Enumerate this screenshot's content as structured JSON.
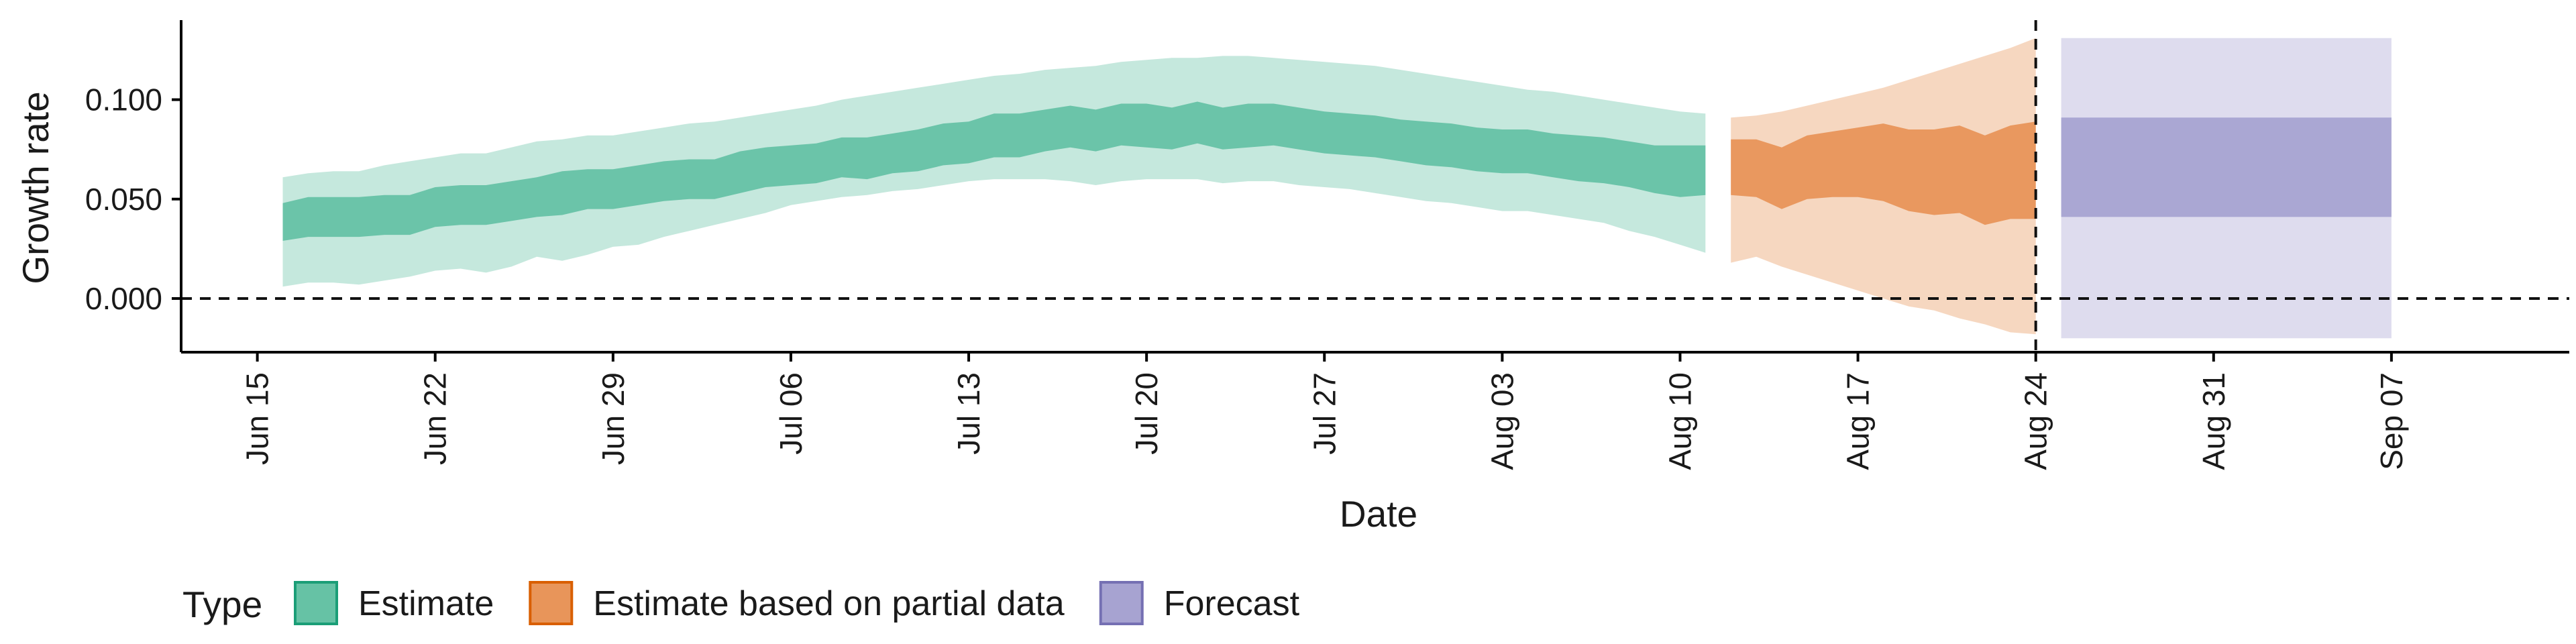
{
  "chart_data": {
    "type": "area",
    "xlabel": "Date",
    "ylabel": "Growth rate",
    "x_ticks": [
      "Jun 15",
      "Jun 22",
      "Jun 29",
      "Jul 06",
      "Jul 13",
      "Jul 20",
      "Jul 27",
      "Aug 03",
      "Aug 10",
      "Aug 17",
      "Aug 24",
      "Aug 31",
      "Sep 07"
    ],
    "y_ticks": [
      "0.000",
      "0.050",
      "0.100"
    ],
    "xlim": [
      "2020-06-12",
      "2020-09-14"
    ],
    "ylim": [
      -0.027,
      0.14
    ],
    "grid": false,
    "reference_lines": [
      {
        "orientation": "horizontal",
        "value": 0.0,
        "style": "dashed"
      },
      {
        "orientation": "vertical",
        "value": "2020-08-24",
        "style": "dashed"
      }
    ],
    "legend": {
      "title": "Type",
      "position": "bottom",
      "entries": [
        {
          "label": "Estimate",
          "color": "#66c2a5",
          "border": "#1b9e77"
        },
        {
          "label": "Estimate based on partial data",
          "color": "#e8955a",
          "border": "#d95f02"
        },
        {
          "label": "Forecast",
          "color": "#a7a3d1",
          "border": "#7570b3"
        }
      ]
    },
    "series": [
      {
        "name": "Estimate",
        "color": "#66c2a5",
        "start_date": "2020-06-16",
        "end_date": "2020-08-11",
        "inner_lower": [
          0.029,
          0.031,
          0.031,
          0.031,
          0.032,
          0.032,
          0.036,
          0.037,
          0.037,
          0.039,
          0.041,
          0.042,
          0.045,
          0.045,
          0.047,
          0.049,
          0.05,
          0.05,
          0.053,
          0.056,
          0.057,
          0.058,
          0.061,
          0.06,
          0.063,
          0.064,
          0.067,
          0.068,
          0.071,
          0.071,
          0.074,
          0.076,
          0.074,
          0.077,
          0.076,
          0.075,
          0.078,
          0.075,
          0.076,
          0.077,
          0.075,
          0.073,
          0.072,
          0.071,
          0.069,
          0.067,
          0.066,
          0.064,
          0.063,
          0.063,
          0.061,
          0.059,
          0.058,
          0.056,
          0.053,
          0.051,
          0.052
        ],
        "inner_upper": [
          0.048,
          0.051,
          0.051,
          0.051,
          0.052,
          0.052,
          0.056,
          0.057,
          0.057,
          0.059,
          0.061,
          0.064,
          0.065,
          0.065,
          0.067,
          0.069,
          0.07,
          0.07,
          0.074,
          0.076,
          0.077,
          0.078,
          0.081,
          0.081,
          0.083,
          0.085,
          0.088,
          0.089,
          0.093,
          0.093,
          0.095,
          0.097,
          0.095,
          0.098,
          0.098,
          0.096,
          0.099,
          0.096,
          0.098,
          0.098,
          0.096,
          0.094,
          0.093,
          0.092,
          0.09,
          0.089,
          0.088,
          0.086,
          0.085,
          0.085,
          0.083,
          0.082,
          0.081,
          0.079,
          0.077,
          0.077,
          0.077
        ],
        "outer_lower": [
          0.006,
          0.008,
          0.008,
          0.007,
          0.009,
          0.011,
          0.014,
          0.015,
          0.013,
          0.016,
          0.021,
          0.019,
          0.022,
          0.026,
          0.027,
          0.031,
          0.034,
          0.037,
          0.04,
          0.043,
          0.047,
          0.049,
          0.051,
          0.052,
          0.054,
          0.055,
          0.057,
          0.059,
          0.06,
          0.06,
          0.06,
          0.059,
          0.057,
          0.059,
          0.06,
          0.06,
          0.06,
          0.058,
          0.059,
          0.059,
          0.057,
          0.056,
          0.055,
          0.053,
          0.051,
          0.049,
          0.048,
          0.046,
          0.044,
          0.044,
          0.042,
          0.04,
          0.038,
          0.034,
          0.031,
          0.027,
          0.023
        ],
        "outer_upper": [
          0.061,
          0.063,
          0.064,
          0.064,
          0.067,
          0.069,
          0.071,
          0.073,
          0.073,
          0.076,
          0.079,
          0.08,
          0.082,
          0.082,
          0.084,
          0.086,
          0.088,
          0.089,
          0.091,
          0.093,
          0.095,
          0.097,
          0.1,
          0.102,
          0.104,
          0.106,
          0.108,
          0.11,
          0.112,
          0.113,
          0.115,
          0.116,
          0.117,
          0.119,
          0.12,
          0.121,
          0.121,
          0.122,
          0.122,
          0.121,
          0.12,
          0.119,
          0.118,
          0.117,
          0.115,
          0.113,
          0.111,
          0.109,
          0.107,
          0.105,
          0.104,
          0.102,
          0.1,
          0.098,
          0.096,
          0.094,
          0.093
        ]
      },
      {
        "name": "Estimate based on partial data",
        "color": "#e8955a",
        "start_date": "2020-08-12",
        "end_date": "2020-08-24",
        "inner_lower": [
          0.052,
          0.051,
          0.045,
          0.05,
          0.051,
          0.051,
          0.049,
          0.044,
          0.042,
          0.043,
          0.037,
          0.04,
          0.04
        ],
        "inner_upper": [
          0.08,
          0.08,
          0.076,
          0.082,
          0.084,
          0.086,
          0.088,
          0.085,
          0.085,
          0.087,
          0.082,
          0.087,
          0.089
        ],
        "outer_lower": [
          0.018,
          0.021,
          0.016,
          0.012,
          0.008,
          0.004,
          0.0,
          -0.004,
          -0.006,
          -0.01,
          -0.013,
          -0.017,
          -0.018
        ],
        "outer_upper": [
          0.091,
          0.092,
          0.094,
          0.097,
          0.1,
          0.103,
          0.106,
          0.11,
          0.114,
          0.118,
          0.122,
          0.126,
          0.131
        ]
      },
      {
        "name": "Forecast",
        "color": "#a7a3d1",
        "start_date": "2020-08-25",
        "end_date": "2020-09-07",
        "inner_lower": [
          0.041,
          0.041
        ],
        "inner_upper": [
          0.091,
          0.091
        ],
        "outer_lower": [
          -0.02,
          -0.02
        ],
        "outer_upper": [
          0.131,
          0.131
        ]
      }
    ]
  }
}
